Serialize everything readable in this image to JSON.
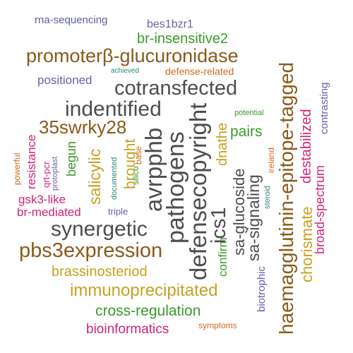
{
  "palette": {
    "brown": "#8B5A1A",
    "gold": "#C9A020",
    "orange": "#D2691E",
    "gray": "#4D4D4D",
    "green": "#3A9A2A",
    "magenta": "#D0257A",
    "purple": "#6B5FA8",
    "olive": "#A08A18",
    "teal": "#2A8A78",
    "navy": "#5C5C9E"
  },
  "words": {
    "rna_sequencing": "rna-sequencing",
    "bes1bzr1": "bes1bzr1",
    "br_insensitive2": "br-insensitive2",
    "promoter_glucuronidase": "promoterβ-glucuronidase",
    "achieved": "achieved",
    "defense_related": "defense-related",
    "positioned": "positioned",
    "cotransfected": "cotransfected",
    "indentified": "indentified",
    "sw35rky28": "35swrky28",
    "avrpphb": "avrpphb",
    "pathogens": "pathogens",
    "defensecopyright": "defensecopyright",
    "dnathe": "dnathe",
    "potential": "potential",
    "pairs": "pairs",
    "ics1": "ics1",
    "haemagglutinin": "haemagglutinin-epitope-tagged",
    "destabilized": "destabilized",
    "contrasting": "contrasting",
    "powerful": "powerful",
    "resistance": "resistance",
    "qrt_pcr": "qrt-pcr",
    "protoplast": "protoplast",
    "begun": "begun",
    "documented": "documented",
    "base": "base",
    "brought": "brought",
    "salicylic": "salicylic",
    "silico": "silico",
    "sa_glucoside": "sa-glucoside",
    "sa_signaling": "sa-signaling",
    "steroid": "steroid",
    "ireland": "ireland",
    "chorismate": "chorismate",
    "broad_spectrum": "broad-spectrum",
    "gsk3_like": "gsk3-like",
    "br_mediated": "br-mediated",
    "triple": "triple",
    "synergetic": "synergetic",
    "pbs3expression": "pbs3expression",
    "confirm": "confirm",
    "brassinosteriod": "brassinosteriod",
    "biotrophic": "biotrophic",
    "immunoprecipitated": "immunoprecipitated",
    "cross_regulation": "cross-regulation",
    "bioinformatics": "bioinformatics",
    "symptoms": "symptoms"
  }
}
